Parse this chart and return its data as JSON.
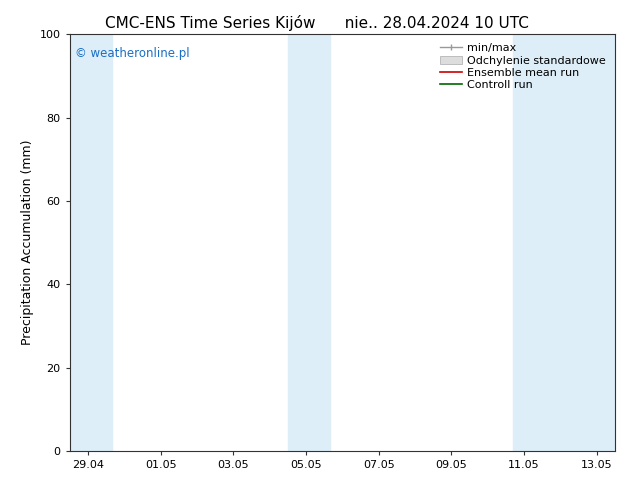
{
  "title_left": "CMC-ENS Time Series Kijów",
  "title_right": "nie.. 28.04.2024 10 UTC",
  "ylabel": "Precipitation Accumulation (mm)",
  "ylim": [
    0,
    100
  ],
  "yticks": [
    0,
    20,
    40,
    60,
    80,
    100
  ],
  "background_color": "#ffffff",
  "plot_bg_color": "#ffffff",
  "watermark": "© weatheronline.pl",
  "watermark_color": "#1a6fc4",
  "xtick_labels": [
    "29.04",
    "01.05",
    "03.05",
    "05.05",
    "07.05",
    "09.05",
    "11.05",
    "13.05"
  ],
  "band_color": "#ddeef8",
  "legend_labels": [
    "min/max",
    "Odchylenie standardowe",
    "Ensemble mean run",
    "Controll run"
  ],
  "legend_colors_line": [
    "#aaaaaa",
    "#cccccc",
    "#dd0000",
    "#006600"
  ],
  "title_fontsize": 11,
  "axis_fontsize": 9,
  "tick_fontsize": 8,
  "legend_fontsize": 8
}
